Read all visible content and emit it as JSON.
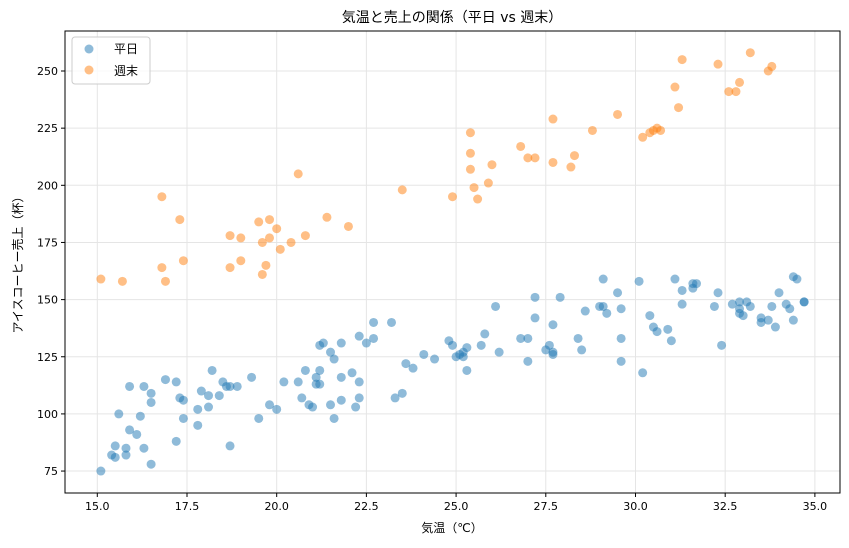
{
  "chart_data": {
    "type": "scatter",
    "title": "気温と売上の関係（平日 vs 週末）",
    "xlabel": "気温（℃）",
    "ylabel": "アイスコーヒー売上（杯）",
    "xlim": [
      14.1,
      35.7
    ],
    "ylim": [
      65.4,
      267.5
    ],
    "xticks": [
      15.0,
      17.5,
      20.0,
      22.5,
      25.0,
      27.5,
      30.0,
      32.5,
      35.0
    ],
    "xtick_labels": [
      "15.0",
      "17.5",
      "20.0",
      "22.5",
      "25.0",
      "27.5",
      "30.0",
      "32.5",
      "35.0"
    ],
    "yticks": [
      75,
      100,
      125,
      150,
      175,
      200,
      225,
      250
    ],
    "ytick_labels": [
      "75",
      "100",
      "125",
      "150",
      "175",
      "200",
      "225",
      "250"
    ],
    "grid": true,
    "legend_position": "top-left",
    "series": [
      {
        "name": "平日",
        "color": "#1f77b4",
        "points": [
          [
            15.1,
            75
          ],
          [
            15.4,
            82
          ],
          [
            15.5,
            86
          ],
          [
            15.5,
            81
          ],
          [
            15.6,
            100
          ],
          [
            15.8,
            85
          ],
          [
            15.8,
            82
          ],
          [
            15.9,
            112
          ],
          [
            15.9,
            93
          ],
          [
            16.1,
            91
          ],
          [
            16.2,
            99
          ],
          [
            16.3,
            112
          ],
          [
            16.3,
            85
          ],
          [
            16.5,
            109
          ],
          [
            16.5,
            105
          ],
          [
            16.5,
            78
          ],
          [
            16.9,
            115
          ],
          [
            17.2,
            114
          ],
          [
            17.2,
            88
          ],
          [
            17.3,
            107
          ],
          [
            17.4,
            106
          ],
          [
            17.4,
            98
          ],
          [
            17.8,
            95
          ],
          [
            17.8,
            102
          ],
          [
            17.9,
            110
          ],
          [
            18.1,
            108
          ],
          [
            18.1,
            103
          ],
          [
            18.2,
            119
          ],
          [
            18.4,
            108
          ],
          [
            18.5,
            114
          ],
          [
            18.6,
            112
          ],
          [
            18.7,
            112
          ],
          [
            18.7,
            86
          ],
          [
            18.9,
            112
          ],
          [
            19.3,
            116
          ],
          [
            19.5,
            98
          ],
          [
            19.8,
            104
          ],
          [
            20.0,
            102
          ],
          [
            20.2,
            114
          ],
          [
            20.6,
            114
          ],
          [
            20.7,
            107
          ],
          [
            20.8,
            119
          ],
          [
            20.9,
            104
          ],
          [
            21.0,
            103
          ],
          [
            21.1,
            116
          ],
          [
            21.1,
            113
          ],
          [
            21.2,
            119
          ],
          [
            21.2,
            113
          ],
          [
            21.2,
            130
          ],
          [
            21.3,
            131
          ],
          [
            21.5,
            104
          ],
          [
            21.5,
            127
          ],
          [
            21.6,
            124
          ],
          [
            21.6,
            98
          ],
          [
            21.8,
            106
          ],
          [
            21.8,
            116
          ],
          [
            21.8,
            131
          ],
          [
            22.1,
            118
          ],
          [
            22.2,
            103
          ],
          [
            22.3,
            107
          ],
          [
            22.3,
            114
          ],
          [
            22.3,
            134
          ],
          [
            22.5,
            131
          ],
          [
            22.7,
            133
          ],
          [
            22.7,
            140
          ],
          [
            23.2,
            140
          ],
          [
            23.3,
            107
          ],
          [
            23.5,
            109
          ],
          [
            23.6,
            122
          ],
          [
            23.8,
            120
          ],
          [
            24.1,
            126
          ],
          [
            24.4,
            124
          ],
          [
            24.8,
            132
          ],
          [
            24.9,
            130
          ],
          [
            25.0,
            125
          ],
          [
            25.1,
            126
          ],
          [
            25.2,
            127
          ],
          [
            25.2,
            125
          ],
          [
            25.3,
            129
          ],
          [
            25.3,
            119
          ],
          [
            25.7,
            130
          ],
          [
            25.8,
            135
          ],
          [
            26.1,
            147
          ],
          [
            26.2,
            127
          ],
          [
            26.8,
            133
          ],
          [
            27.0,
            133
          ],
          [
            27.0,
            123
          ],
          [
            27.2,
            142
          ],
          [
            27.2,
            151
          ],
          [
            27.5,
            128
          ],
          [
            27.6,
            130
          ],
          [
            27.7,
            139
          ],
          [
            27.7,
            127
          ],
          [
            27.7,
            126
          ],
          [
            27.9,
            151
          ],
          [
            28.4,
            133
          ],
          [
            28.5,
            128
          ],
          [
            28.6,
            145
          ],
          [
            29.0,
            147
          ],
          [
            29.1,
            159
          ],
          [
            29.1,
            147
          ],
          [
            29.2,
            144
          ],
          [
            29.5,
            153
          ],
          [
            29.6,
            133
          ],
          [
            29.6,
            123
          ],
          [
            29.6,
            146
          ],
          [
            30.1,
            158
          ],
          [
            30.2,
            118
          ],
          [
            30.4,
            143
          ],
          [
            30.5,
            138
          ],
          [
            30.6,
            136
          ],
          [
            30.9,
            137
          ],
          [
            31.0,
            132
          ],
          [
            31.1,
            159
          ],
          [
            31.3,
            154
          ],
          [
            31.3,
            148
          ],
          [
            31.6,
            155
          ],
          [
            31.6,
            157
          ],
          [
            31.7,
            157
          ],
          [
            32.2,
            147
          ],
          [
            32.3,
            153
          ],
          [
            32.4,
            130
          ],
          [
            32.7,
            148
          ],
          [
            32.9,
            146
          ],
          [
            32.9,
            149
          ],
          [
            32.9,
            144
          ],
          [
            33.0,
            143
          ],
          [
            33.1,
            149
          ],
          [
            33.2,
            147
          ],
          [
            33.5,
            142
          ],
          [
            33.5,
            140
          ],
          [
            33.7,
            141
          ],
          [
            33.8,
            147
          ],
          [
            33.9,
            138
          ],
          [
            34.0,
            153
          ],
          [
            34.2,
            148
          ],
          [
            34.3,
            146
          ],
          [
            34.4,
            160
          ],
          [
            34.4,
            141
          ],
          [
            34.5,
            159
          ],
          [
            34.7,
            149
          ],
          [
            34.7,
            149
          ]
        ]
      },
      {
        "name": "週末",
        "color": "#ff7f0e",
        "points": [
          [
            15.1,
            159
          ],
          [
            15.7,
            158
          ],
          [
            16.8,
            195
          ],
          [
            16.8,
            164
          ],
          [
            16.9,
            158
          ],
          [
            17.3,
            185
          ],
          [
            17.4,
            167
          ],
          [
            18.7,
            178
          ],
          [
            18.7,
            164
          ],
          [
            19.0,
            177
          ],
          [
            19.0,
            167
          ],
          [
            19.5,
            184
          ],
          [
            19.6,
            175
          ],
          [
            19.6,
            161
          ],
          [
            19.7,
            165
          ],
          [
            19.8,
            177
          ],
          [
            19.8,
            185
          ],
          [
            20.0,
            181
          ],
          [
            20.1,
            172
          ],
          [
            20.4,
            175
          ],
          [
            20.6,
            205
          ],
          [
            20.8,
            178
          ],
          [
            21.4,
            186
          ],
          [
            22.0,
            182
          ],
          [
            23.5,
            198
          ],
          [
            24.9,
            195
          ],
          [
            25.4,
            223
          ],
          [
            25.4,
            214
          ],
          [
            25.4,
            207
          ],
          [
            25.5,
            199
          ],
          [
            25.6,
            194
          ],
          [
            25.9,
            201
          ],
          [
            26.0,
            209
          ],
          [
            26.8,
            217
          ],
          [
            27.0,
            212
          ],
          [
            27.2,
            212
          ],
          [
            27.7,
            210
          ],
          [
            27.7,
            229
          ],
          [
            28.2,
            208
          ],
          [
            28.3,
            213
          ],
          [
            28.8,
            224
          ],
          [
            29.5,
            231
          ],
          [
            30.2,
            221
          ],
          [
            30.6,
            225
          ],
          [
            30.5,
            224
          ],
          [
            30.7,
            224
          ],
          [
            30.4,
            223
          ],
          [
            31.1,
            243
          ],
          [
            31.2,
            234
          ],
          [
            31.3,
            255
          ],
          [
            32.3,
            253
          ],
          [
            32.6,
            241
          ],
          [
            32.8,
            241
          ],
          [
            32.9,
            245
          ],
          [
            33.2,
            258
          ],
          [
            33.7,
            250
          ],
          [
            33.8,
            252
          ]
        ]
      }
    ]
  }
}
